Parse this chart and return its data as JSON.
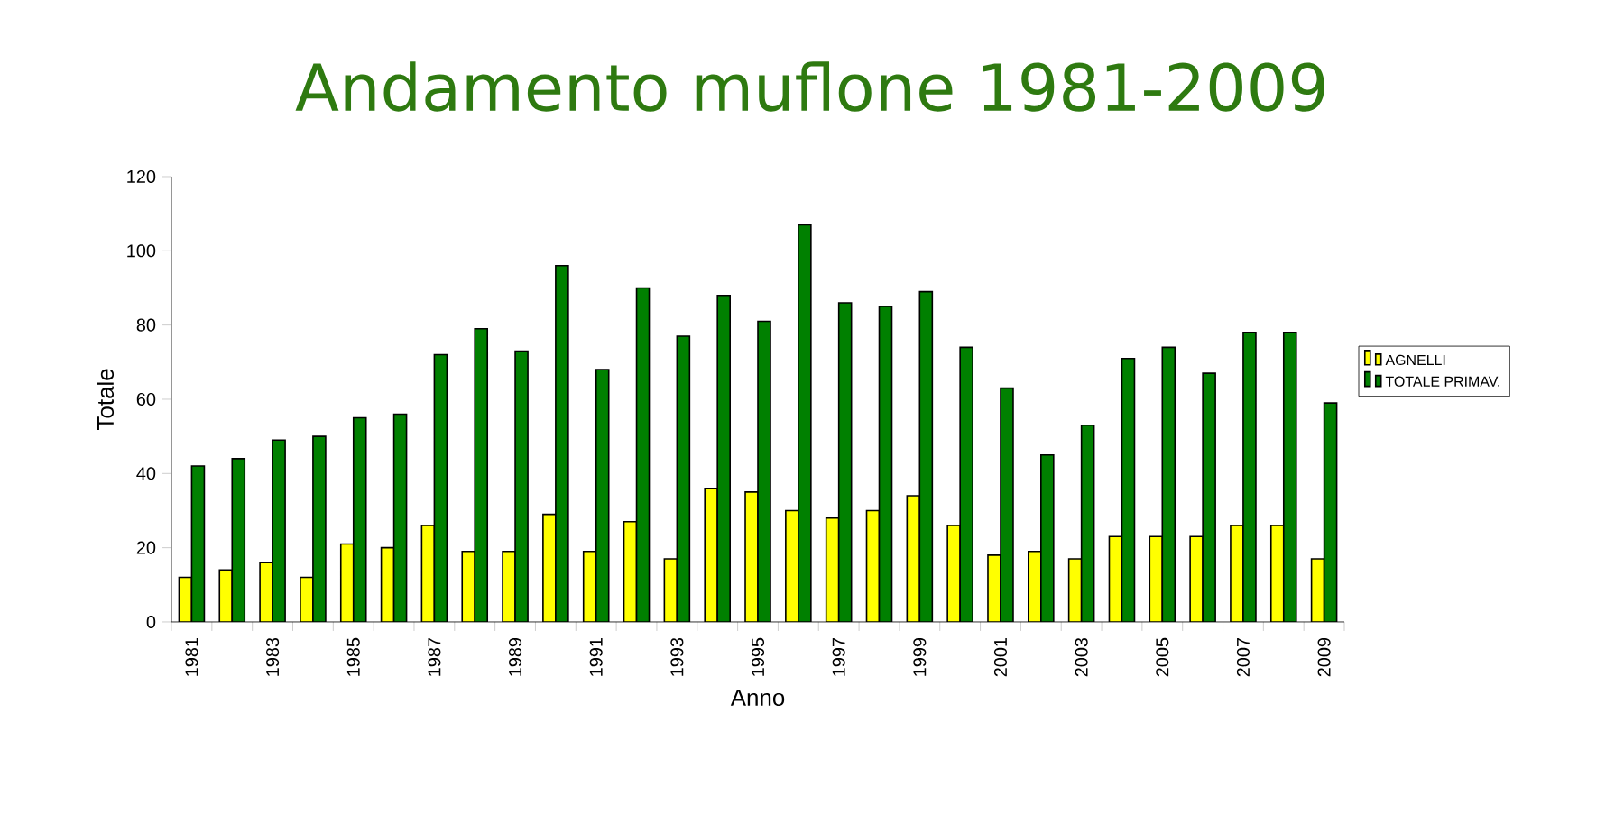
{
  "chart_data": {
    "type": "bar",
    "title": "Andamento muflone 1981-2009",
    "xlabel": "Anno",
    "ylabel": "Totale",
    "categories": [
      "1981",
      null,
      "1983",
      null,
      "1985",
      null,
      "1987",
      null,
      "1989",
      null,
      "1991",
      null,
      "1993",
      null,
      "1995",
      null,
      "1997",
      null,
      "1999",
      null,
      "2001",
      null,
      "2003",
      null,
      "2005",
      null,
      "2007",
      null,
      "2009"
    ],
    "series": [
      {
        "name": "AGNELLI",
        "color": "#ffff00",
        "values": [
          12,
          14,
          16,
          12,
          21,
          20,
          26,
          19,
          19,
          29,
          19,
          27,
          17,
          36,
          35,
          30,
          28,
          30,
          34,
          26,
          18,
          19,
          17,
          23,
          23,
          23,
          26,
          26,
          17
        ]
      },
      {
        "name": "TOTALE PRIMAV.",
        "color": "#008000",
        "values": [
          42,
          44,
          49,
          50,
          55,
          56,
          72,
          79,
          73,
          96,
          68,
          90,
          77,
          88,
          81,
          107,
          86,
          85,
          89,
          74,
          63,
          45,
          53,
          71,
          74,
          67,
          78,
          78,
          59
        ]
      }
    ],
    "ylim": [
      0,
      120
    ],
    "yticks": [
      0,
      20,
      40,
      60,
      80,
      100,
      120
    ],
    "legend": "right"
  }
}
